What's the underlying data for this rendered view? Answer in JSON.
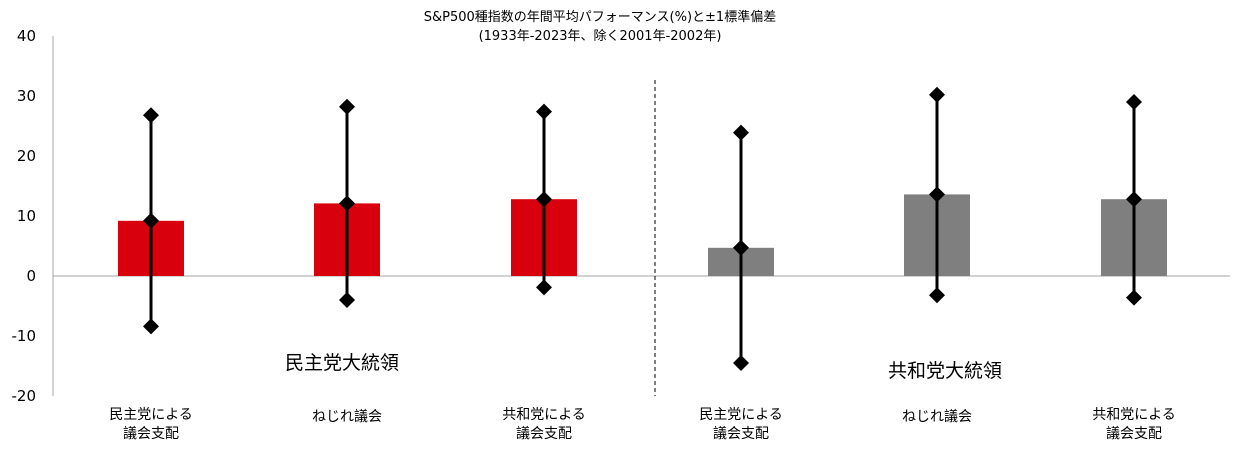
{
  "chart_data": {
    "type": "bar",
    "title": "S&P500種指数の年間平均パフォーマンス(%)と±1標準偏差",
    "subtitle": "(1933年-2023年、除く2001年-2002年)",
    "ylim": [
      -20,
      40
    ],
    "yticks": [
      -20,
      -10,
      0,
      10,
      20,
      30,
      40
    ],
    "grid": false,
    "groups": [
      {
        "label": "民主党大統領",
        "color": "#d9000d"
      },
      {
        "label": "共和党大統領",
        "color": "#7f7f7f"
      }
    ],
    "categories": [
      {
        "lines": [
          "民主党による",
          "議会支配"
        ],
        "group": 0
      },
      {
        "lines": [
          "ねじれ議会"
        ],
        "group": 0
      },
      {
        "lines": [
          "共和党による",
          "議会支配"
        ],
        "group": 0
      },
      {
        "lines": [
          "民主党による",
          "議会支配"
        ],
        "group": 1
      },
      {
        "lines": [
          "ねじれ議会"
        ],
        "group": 1
      },
      {
        "lines": [
          "共和党による",
          "議会支配"
        ],
        "group": 1
      }
    ],
    "values": [
      9.2,
      12.1,
      12.8,
      4.7,
      13.6,
      12.8
    ],
    "upper": [
      26.8,
      28.2,
      27.4,
      23.9,
      30.2,
      29.0
    ],
    "lower": [
      -8.4,
      -4.0,
      -1.9,
      -14.5,
      -3.2,
      -3.6
    ]
  }
}
